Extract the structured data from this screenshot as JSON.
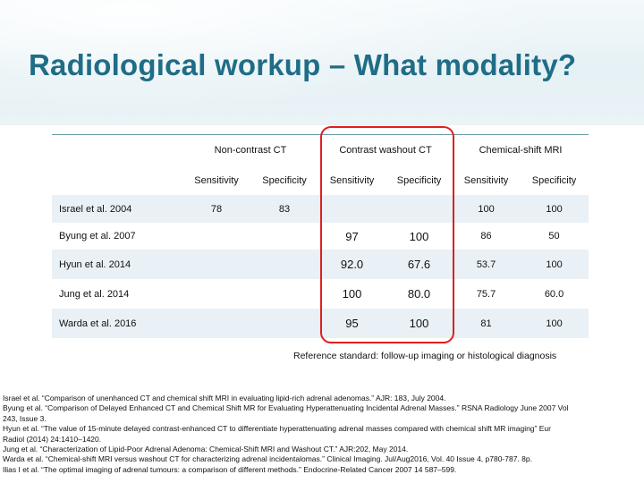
{
  "slide": {
    "title": "Radiological workup – What modality?",
    "reference_standard": "Reference standard: follow-up imaging or histological diagnosis"
  },
  "table": {
    "groups": [
      "Non-contrast CT",
      "Contrast washout CT",
      "Chemical-shift MRI"
    ],
    "subheaders": [
      "Sensitivity",
      "Specificity",
      "Sensitivity",
      "Specificity",
      "Sensitivity",
      "Specificity"
    ],
    "rows": [
      {
        "study": "Israel et al. 2004",
        "values": [
          "78",
          "83",
          "",
          "",
          "100",
          "100"
        ]
      },
      {
        "study": "Byung et al. 2007",
        "values": [
          "",
          "",
          "97",
          "100",
          "86",
          "50"
        ]
      },
      {
        "study": "Hyun et al. 2014",
        "values": [
          "",
          "",
          "92.0",
          "67.6",
          "53.7",
          "100"
        ]
      },
      {
        "study": "Jung et al. 2014",
        "values": [
          "",
          "",
          "100",
          "80.0",
          "75.7",
          "60.0"
        ]
      },
      {
        "study": "Warda et al. 2016",
        "values": [
          "",
          "",
          "95",
          "100",
          "81",
          "100"
        ]
      }
    ]
  },
  "references": [
    "Israel et al. “Comparison of unenhanced CT and chemical shift MRI in evaluating lipid-rich adrenal adenomas.” AJR: 183, July 2004.",
    "Byung et al. “Comparison of Delayed Enhanced CT and Chemical Shift MR for Evaluating Hyperattenuating Incidental Adrenal Masses.” RSNA Radiology June 2007 Vol",
    "243, Issue 3.",
    "Hyun et al. “The value of 15-minute delayed contrast-enhanced CT to differentiate hyperattenuating adrenal masses compared with chemical shift MR imaging” Eur",
    "Radiol (2014) 24:1410–1420.",
    "Jung et al. “Characterization of Lipid-Poor Adrenal Adenoma: Chemical-Shift MRI and Washout CT.” AJR:202, May 2014.",
    "Warda et al. “Chemical-shift MRI versus washout CT for characterizing adrenal incidentalomas.” Clinical Imaging. Jul/Aug2016, Vol. 40 Issue 4, p780-787. 8p.",
    "Ilias I et al. “The optimal imaging of adrenal tumours: a comparison of different methods.” Endocrine-Related Cancer 2007 14 587–599."
  ]
}
